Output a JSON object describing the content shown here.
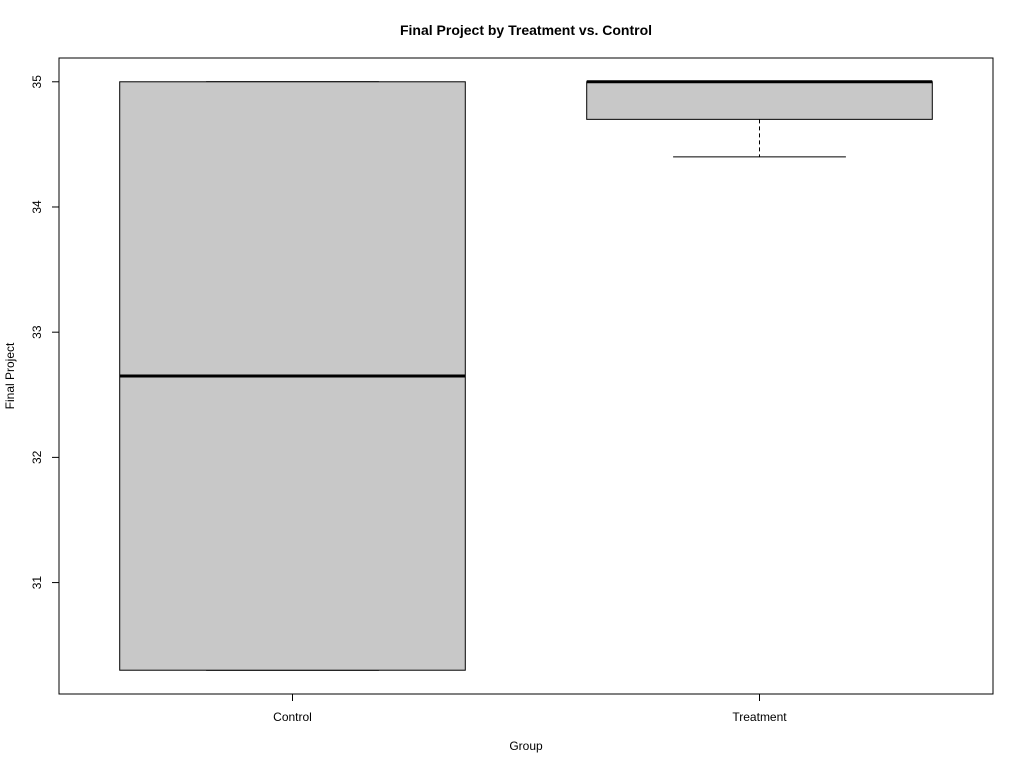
{
  "chart_data": {
    "type": "boxplot",
    "title": "Final Project by Treatment vs. Control",
    "xlabel": "Group",
    "ylabel": "Final Project",
    "categories": [
      "Control",
      "Treatment"
    ],
    "boxes": [
      {
        "category": "Control",
        "whisker_low": 30.3,
        "q1": 30.3,
        "median": 32.65,
        "q3": 35.0,
        "whisker_high": 35.0
      },
      {
        "category": "Treatment",
        "whisker_low": 34.4,
        "q1": 34.7,
        "median": 35.0,
        "q3": 35.0,
        "whisker_high": 35.0
      }
    ],
    "ylim": [
      30.11,
      35.19
    ],
    "yticks": [
      31,
      32,
      33,
      34,
      35
    ],
    "grid": false,
    "colors": {
      "box_fill": "#c8c8c8",
      "stroke": "#000000",
      "background": "#ffffff"
    }
  }
}
